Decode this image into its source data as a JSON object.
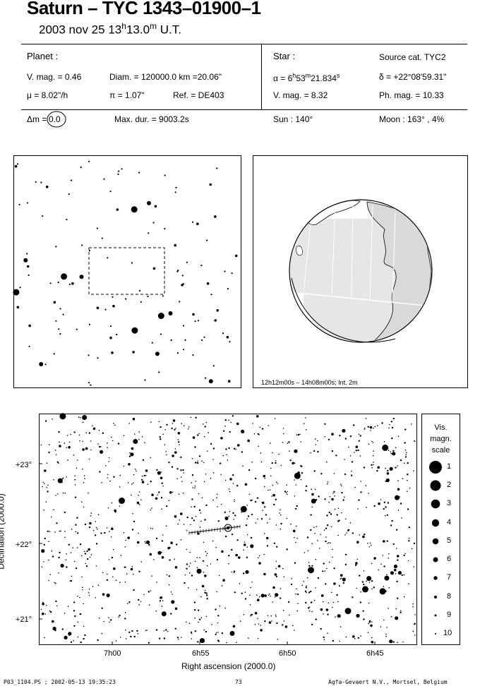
{
  "header": {
    "title": "Saturn  –  TYC 1343–01900–1",
    "date": "2003 nov 25",
    "time_h": "13",
    "time_sup_h": "h",
    "time_m": "13.0",
    "time_sup_m": "m",
    "time_ut": "U.T."
  },
  "planet": {
    "heading": "Planet :",
    "vmag": "V. mag. =  0.46",
    "diam": "Diam. = 120000.0 km =20.06\"",
    "mu": "μ =  8.02\"/h",
    "pi": "π =  1.07\"",
    "ref": "Ref. = DE403"
  },
  "star": {
    "heading": "Star :",
    "source": "Source cat.  TYC2",
    "alpha_prefix": "α =  6",
    "alpha_h": "h",
    "alpha_mid": "53",
    "alpha_m": "m",
    "alpha_s": "21.834",
    "alpha_sup_s": "s",
    "delta": "δ = +22°08'59.31\"",
    "vmag": "V. mag. =  8.32",
    "phmag": "Ph. mag. = 10.33"
  },
  "bottom_row": {
    "dm_label": "Δm =",
    "dm_value": "0.0",
    "maxdur": "Max. dur. = 9003.2s",
    "sun": "Sun : 140°",
    "moon": "Moon : 163° ,  4%"
  },
  "globe": {
    "caption": "12h12m00s – 14h08m00s; Int.  2m"
  },
  "chart": {
    "yaxis_label": "Declination (2000.0)",
    "xaxis_label": "Right ascension (2000.0)",
    "dec_ticks": [
      "+23°",
      "+22°",
      "+21°"
    ],
    "ra_ticks": [
      "7h00",
      "6h55",
      "6h50",
      "6h45"
    ]
  },
  "scale": {
    "heading_1": "Vis.",
    "heading_2": "magn.",
    "heading_3": "scale",
    "values": [
      "1",
      "2",
      "3",
      "4",
      "5",
      "6",
      "7",
      "8",
      "9",
      "10"
    ]
  },
  "footer": {
    "left": "P03_1104.PS ; 2002-05-13 19:35:23",
    "center": "73",
    "right": "Agfa-Gevaert N.V., Mortsel, Belgium"
  }
}
